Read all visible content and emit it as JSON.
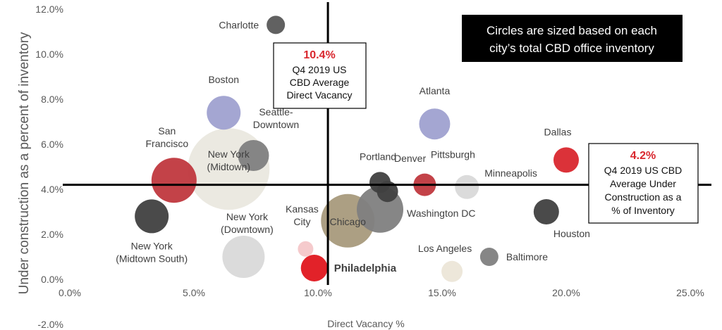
{
  "chart_data": {
    "type": "bubble",
    "xlabel": "Direct Vacancy %",
    "ylabel": "Under construction as a percent of inventory",
    "xlim": [
      0,
      25
    ],
    "ylim": [
      -2,
      12
    ],
    "x_ticks": [
      0,
      5,
      10,
      15,
      20,
      25
    ],
    "x_tick_labels": [
      "0.0%",
      "5.0%",
      "10.0%",
      "15.0%",
      "20.0%",
      "25.0%"
    ],
    "y_ticks": [
      -2,
      0,
      2,
      4,
      6,
      8,
      10,
      12
    ],
    "y_tick_labels": [
      "-2.0%",
      "0.0%",
      "2.0%",
      "4.0%",
      "6.0%",
      "8.0%",
      "10.0%",
      "12.0%"
    ],
    "grid": false,
    "size_note": {
      "lines": [
        "Circles are sized based on each",
        "city’s total CBD office inventory"
      ],
      "color": "#000000"
    },
    "reference_lines": {
      "vertical": {
        "x": 10.4,
        "value_label": "10.4%",
        "label_lines": [
          "Q4 2019 US",
          "CBD Average",
          "Direct Vacancy"
        ]
      },
      "horizontal": {
        "y": 4.2,
        "value_label": "4.2%",
        "label_lines": [
          "Q4 2019 US CBD",
          "Average Under",
          "Construction as a",
          "% of Inventory"
        ]
      },
      "accent_color": "#d9272e"
    },
    "points": [
      {
        "label_lines": [
          "Charlotte"
        ],
        "x": 8.3,
        "y": 11.3,
        "size": 13,
        "color": "#595959",
        "label_anchor": "end",
        "label_dx": -24,
        "label_dy": 5
      },
      {
        "label_lines": [
          "Boston"
        ],
        "x": 6.2,
        "y": 7.4,
        "size": 24,
        "color": "#9fa1d0",
        "label_anchor": "middle",
        "label_dx": 0,
        "label_dy": -42
      },
      {
        "label_lines": [
          "Atlanta"
        ],
        "x": 14.7,
        "y": 6.9,
        "size": 22,
        "color": "#9fa1d0",
        "label_anchor": "middle",
        "label_dx": 0,
        "label_dy": -42
      },
      {
        "label_lines": [
          "Dallas"
        ],
        "x": 20.0,
        "y": 5.3,
        "size": 18,
        "color": "#d9272e",
        "label_anchor": "middle",
        "label_dx": -12,
        "label_dy": -35
      },
      {
        "label_lines": [
          "Seattle-",
          "Downtown"
        ],
        "x": 7.4,
        "y": 5.5,
        "size": 22,
        "color": "#808080",
        "label_anchor": "middle",
        "label_dx": 32,
        "label_dy": -57
      },
      {
        "label_lines": [
          "San",
          "Francisco"
        ],
        "x": 4.2,
        "y": 4.4,
        "size": 32,
        "color": "#c0383e",
        "label_anchor": "middle",
        "label_dx": -10,
        "label_dy": -65
      },
      {
        "label_lines": [
          "New York",
          "(Midtown)"
        ],
        "x": 6.4,
        "y": 4.9,
        "size": 58,
        "color": "#eae8df",
        "label_anchor": "middle",
        "label_dx": 0,
        "label_dy": -16
      },
      {
        "label_lines": [
          "Portland"
        ],
        "x": 12.5,
        "y": 4.3,
        "size": 15,
        "color": "#404040",
        "label_anchor": "middle",
        "label_dx": -3,
        "label_dy": -32
      },
      {
        "label_lines": [
          "Denver"
        ],
        "x": 12.8,
        "y": 3.9,
        "size": 15,
        "color": "#404040",
        "label_anchor": "middle",
        "label_dx": 32,
        "label_dy": -42
      },
      {
        "label_lines": [
          "Pittsburgh"
        ],
        "x": 14.3,
        "y": 4.2,
        "size": 16,
        "color": "#c0383e",
        "label_anchor": "middle",
        "label_dx": 40,
        "label_dy": -38
      },
      {
        "label_lines": [
          "Minneapolis"
        ],
        "x": 16.0,
        "y": 4.1,
        "size": 17,
        "color": "#d9d9d9",
        "label_anchor": "start",
        "label_dx": 25,
        "label_dy": -15
      },
      {
        "label_lines": [
          "Washington DC"
        ],
        "x": 12.5,
        "y": 3.1,
        "size": 33,
        "color": "#808080",
        "label_anchor": "start",
        "label_dx": 38,
        "label_dy": 10
      },
      {
        "label_lines": [
          "Chicago"
        ],
        "x": 11.2,
        "y": 2.6,
        "size": 38,
        "color": "#a89a7c",
        "label_anchor": "middle",
        "label_dx": 0,
        "label_dy": 6
      },
      {
        "label_lines": [
          "Houston"
        ],
        "x": 19.2,
        "y": 3.0,
        "size": 18,
        "color": "#404040",
        "label_anchor": "start",
        "label_dx": 10,
        "label_dy": 36
      },
      {
        "label_lines": [
          "New York",
          "(Midtown South)"
        ],
        "x": 3.3,
        "y": 2.8,
        "size": 24,
        "color": "#404040",
        "label_anchor": "middle",
        "label_dx": 0,
        "label_dy": 47
      },
      {
        "label_lines": [
          "New York",
          "(Downtown)"
        ],
        "x": 7.0,
        "y": 1.0,
        "size": 30,
        "color": "#d9d9d9",
        "label_anchor": "middle",
        "label_dx": 5,
        "label_dy": -52
      },
      {
        "label_lines": [
          "Kansas",
          "City"
        ],
        "x": 9.5,
        "y": 1.35,
        "size": 11,
        "color": "#f4c7c9",
        "label_anchor": "middle",
        "label_dx": -5,
        "label_dy": -52
      },
      {
        "label_lines": [
          "Philadelphia"
        ],
        "x": 9.85,
        "y": 0.5,
        "size": 19,
        "color": "#e0161e",
        "label_anchor": "start",
        "label_dx": 28,
        "label_dy": 5,
        "bold": true
      },
      {
        "label_lines": [
          "Los Angeles"
        ],
        "x": 15.4,
        "y": 0.35,
        "size": 15,
        "color": "#ece6d8",
        "label_anchor": "middle",
        "label_dx": -10,
        "label_dy": -28
      },
      {
        "label_lines": [
          "Baltimore"
        ],
        "x": 16.9,
        "y": 1.0,
        "size": 13,
        "color": "#808080",
        "label_anchor": "start",
        "label_dx": 24,
        "label_dy": 5
      }
    ]
  }
}
